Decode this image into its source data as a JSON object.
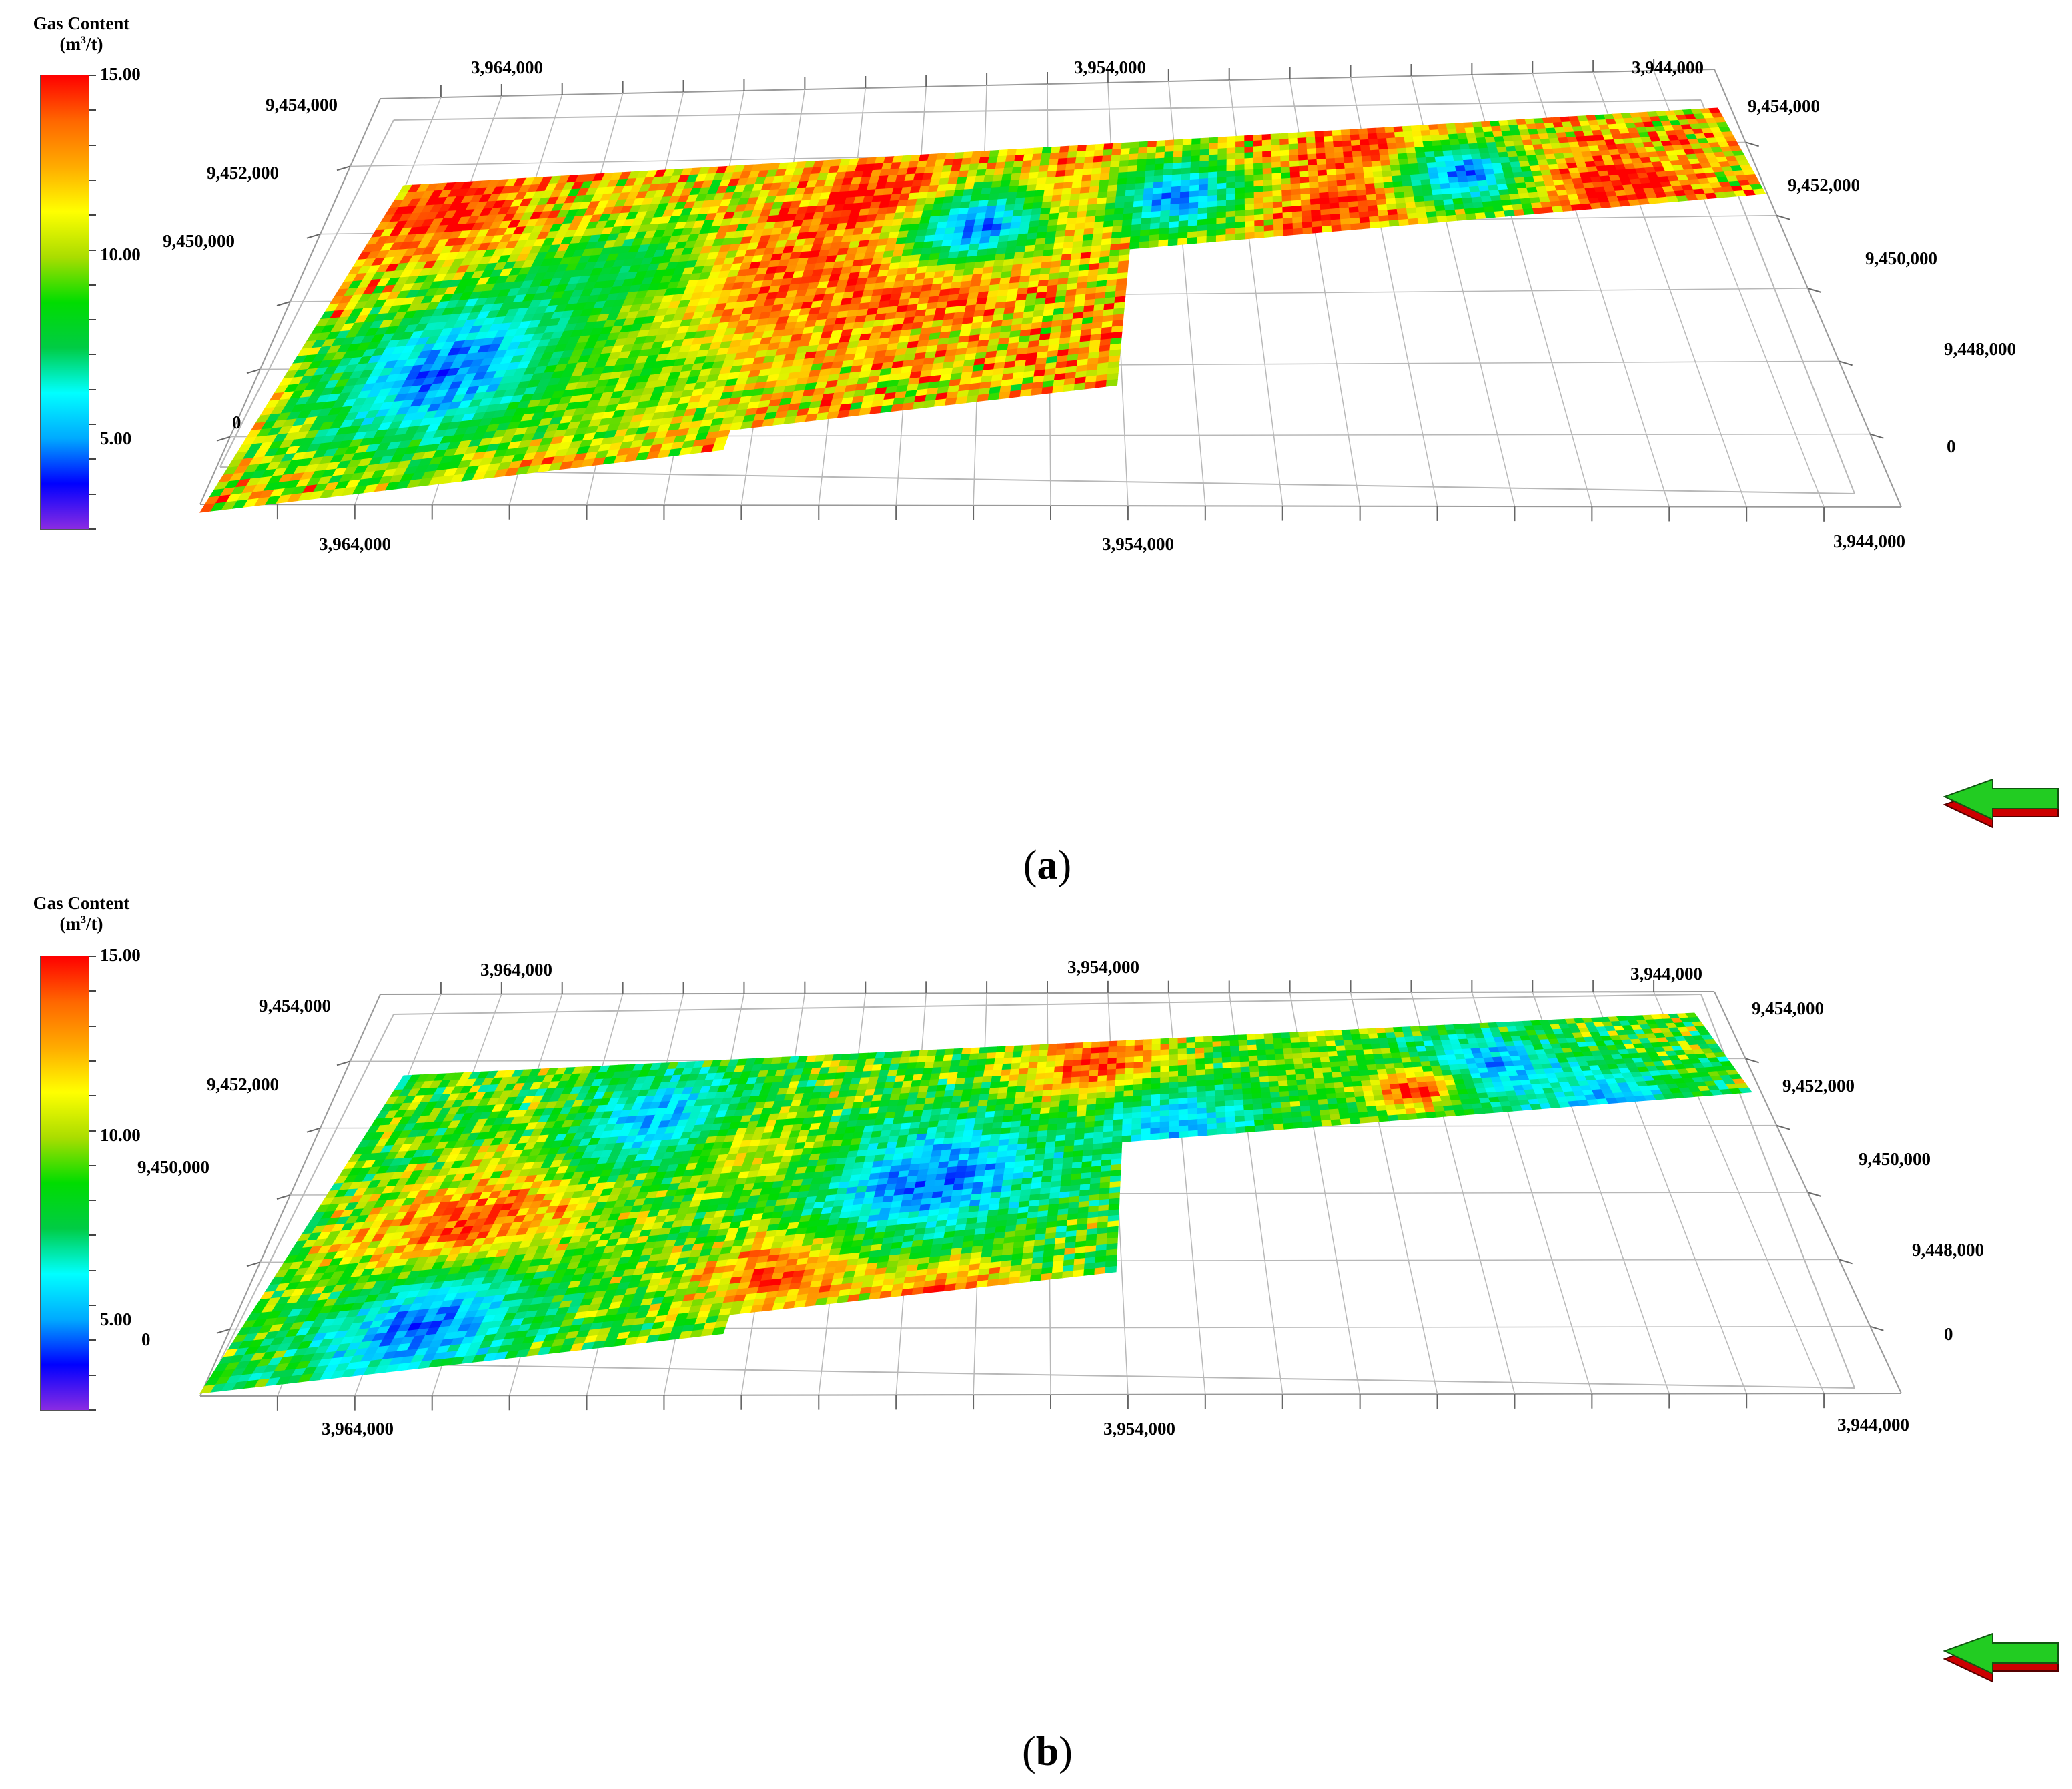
{
  "colorbar": {
    "title": "Gas Content",
    "unit_prefix": "(m",
    "unit_sup": "3",
    "unit_suffix": "/t)",
    "ticks": [
      "15.00",
      "10.00",
      "5.00"
    ],
    "tick_values": [
      15,
      10,
      5
    ],
    "range": [
      2,
      15
    ],
    "colors": [
      "#8a2be2",
      "#0000ff",
      "#00aaff",
      "#00ffff",
      "#00cc44",
      "#00dd00",
      "#aadd00",
      "#ffff00",
      "#ffaa00",
      "#ff6600",
      "#ff0000"
    ]
  },
  "panels": [
    {
      "id": "a",
      "caption_open": "(",
      "caption_letter": "a",
      "caption_close": ")",
      "axis_labels": {
        "top_x": [
          "3,964,000",
          "3,954,000",
          "3,944,000"
        ],
        "bottom_x": [
          "3,964,000",
          "3,954,000",
          "3,944,000"
        ],
        "left_y": [
          "9,454,000",
          "9,452,000",
          "9,450,000",
          "0"
        ],
        "right_y": [
          "9,454,000",
          "9,452,000",
          "9,450,000",
          "9,448,000",
          "0"
        ]
      }
    },
    {
      "id": "b",
      "caption_open": "(",
      "caption_letter": "b",
      "caption_close": ")",
      "axis_labels": {
        "top_x": [
          "3,964,000",
          "3,954,000",
          "3,944,000"
        ],
        "bottom_x": [
          "3,964,000",
          "3,954,000",
          "3,944,000"
        ],
        "left_y": [
          "9,454,000",
          "9,452,000",
          "9,450,000",
          "0"
        ],
        "right_y": [
          "9,454,000",
          "9,452,000",
          "9,450,000",
          "9,448,000",
          "0"
        ]
      }
    }
  ],
  "chart_data": [
    {
      "type": "heatmap",
      "title": "",
      "colorbar_label": "Gas Content (m3/t)",
      "value_range": [
        2,
        15
      ],
      "x_ticks": [
        "3,964,000",
        "3,954,000",
        "3,944,000"
      ],
      "y_ticks": [
        "9,454,000",
        "9,452,000",
        "9,450,000",
        "9,448,000"
      ],
      "z_ticks": [
        "0"
      ],
      "dominant_classes": [
        "high (red)",
        "medium (yellow-orange)",
        "low (blue)"
      ]
    },
    {
      "type": "heatmap",
      "title": "",
      "colorbar_label": "Gas Content (m3/t)",
      "value_range": [
        2,
        15
      ],
      "x_ticks": [
        "3,964,000",
        "3,954,000",
        "3,944,000"
      ],
      "y_ticks": [
        "9,454,000",
        "9,452,000",
        "9,450,000",
        "9,448,000"
      ],
      "z_ticks": [
        "0"
      ],
      "dominant_classes": [
        "high (red)",
        "medium (green-yellow)",
        "low (blue)"
      ]
    }
  ]
}
